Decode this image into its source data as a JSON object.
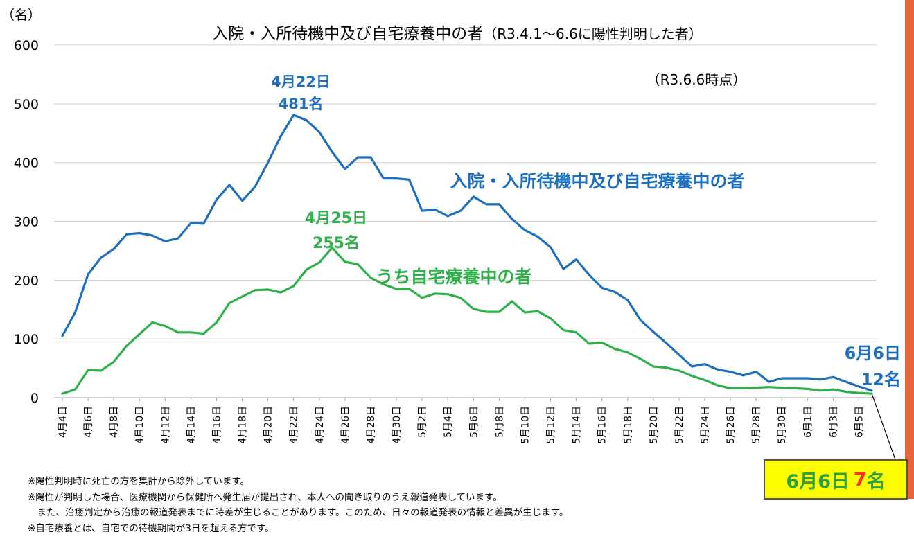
{
  "chart_data": {
    "type": "line",
    "title": "入院・入所待機中及び自宅療養中の者",
    "subtitle": "（R3.4.1～6.6に陽性判明した者）",
    "as_of": "（R3.6.6時点）",
    "y_unit": "（名）",
    "ylim": [
      0,
      600
    ],
    "y_ticks": [
      0,
      100,
      200,
      300,
      400,
      500,
      600
    ],
    "grid": true,
    "x_tick_labels": [
      "4月4日",
      "4月6日",
      "4月8日",
      "4月10日",
      "4月12日",
      "4月14日",
      "4月16日",
      "4月18日",
      "4月20日",
      "4月22日",
      "4月24日",
      "4月26日",
      "4月28日",
      "4月30日",
      "5月2日",
      "5月4日",
      "5月6日",
      "5月8日",
      "5月10日",
      "5月12日",
      "5月14日",
      "5月16日",
      "5月18日",
      "5月20日",
      "5月22日",
      "5月24日",
      "5月26日",
      "5月28日",
      "5月30日",
      "6月1日",
      "6月3日",
      "6月5日"
    ],
    "x_start": "4月4日",
    "x_end": "6月6日",
    "series": [
      {
        "name": "入院・入所待機中及び自宅療養中の者",
        "color": "#1f6fbf",
        "values": [
          105,
          145,
          210,
          238,
          253,
          278,
          280,
          276,
          266,
          271,
          297,
          296,
          337,
          362,
          335,
          359,
          400,
          445,
          481,
          472,
          452,
          418,
          389,
          409,
          409,
          373,
          373,
          371,
          318,
          320,
          309,
          318,
          342,
          329,
          329,
          304,
          285,
          274,
          256,
          219,
          235,
          209,
          187,
          180,
          166,
          132,
          112,
          93,
          73,
          53,
          57,
          48,
          44,
          38,
          44,
          27,
          33,
          33,
          33,
          31,
          35,
          27,
          19,
          12
        ]
      },
      {
        "name": "うち自宅療養中の者",
        "color": "#2fb04a",
        "values": [
          7,
          14,
          47,
          46,
          61,
          88,
          108,
          128,
          122,
          111,
          111,
          109,
          128,
          161,
          172,
          183,
          184,
          179,
          190,
          218,
          230,
          255,
          231,
          227,
          204,
          193,
          185,
          185,
          170,
          177,
          176,
          170,
          151,
          146,
          146,
          164,
          145,
          147,
          135,
          115,
          111,
          92,
          94,
          83,
          77,
          66,
          53,
          51,
          46,
          37,
          30,
          21,
          16,
          16,
          17,
          18,
          17,
          16,
          15,
          12,
          14,
          10,
          8,
          7
        ]
      }
    ],
    "annotations": {
      "peak_total_date": "4月22日",
      "peak_total_value": "481名",
      "peak_home_date": "4月25日",
      "peak_home_value": "255名",
      "end_total_date": "6月6日",
      "end_total_value": "12名",
      "callout_date": "6月6日",
      "callout_number": "7",
      "callout_unit": "名"
    }
  },
  "notes": [
    "※陽性判明時に死亡の方を集計から除外しています。",
    "※陽性が判明した場合、医療機関から保健所へ発生届が提出され、本人への聞き取りのうえ報道発表しています。",
    "　また、治癒判定から治癒の報道発表までに時差が生じることがあります。このため、日々の報道発表の情報と差異が生じます。",
    "※自宅療養とは、自宅での待機期間が3日を超える方です。"
  ]
}
